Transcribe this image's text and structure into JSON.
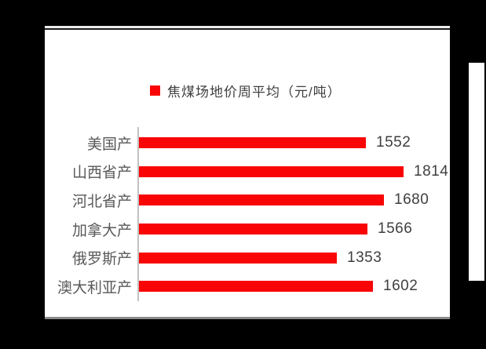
{
  "page": {
    "background_color": "#000000",
    "card_background_color": "#ffffff"
  },
  "chart_data": {
    "type": "bar",
    "orientation": "horizontal",
    "title": "",
    "legend": {
      "label": "焦煤场地价周平均（元/吨）",
      "position": "top",
      "marker_color": "#f90505"
    },
    "categories": [
      "美国产",
      "山西省产",
      "河北省产",
      "加拿大产",
      "俄罗斯产",
      "澳大利亚产"
    ],
    "values": [
      1552,
      1814,
      1680,
      1566,
      1353,
      1602
    ],
    "xlim": [
      0,
      2000
    ],
    "grid": false,
    "data_labels": true,
    "bar_color": "#f90505",
    "category_label_color": "#595959",
    "value_label_color": "#3f3f3f",
    "axis_line_color": "#c2c2c2"
  }
}
